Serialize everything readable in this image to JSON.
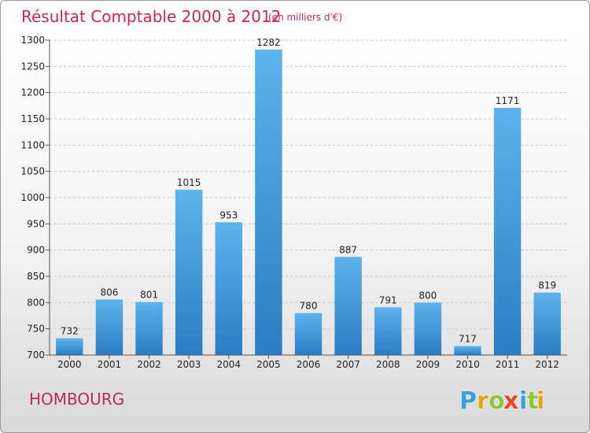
{
  "chart_data": {
    "type": "bar",
    "title": "Résultat Comptable 2000 à 2012",
    "subtitle": "(en milliers d'€)",
    "categories": [
      "2000",
      "2001",
      "2002",
      "2003",
      "2004",
      "2005",
      "2006",
      "2007",
      "2008",
      "2009",
      "2010",
      "2011",
      "2012"
    ],
    "values": [
      732,
      806,
      801,
      1015,
      953,
      1282,
      780,
      887,
      791,
      800,
      717,
      1171,
      819
    ],
    "ylim": [
      700,
      1300
    ],
    "yticks": [
      700,
      750,
      800,
      850,
      900,
      950,
      1000,
      1050,
      1100,
      1150,
      1200,
      1250,
      1300
    ],
    "xlabel": "",
    "ylabel": "",
    "grid": true,
    "bar_color": "#3f9ddf"
  },
  "footer": {
    "commune": "HOMBOURG",
    "logo_letters": [
      "P",
      "r",
      "o",
      "x",
      "i",
      "t",
      "i"
    ],
    "logo_colors": [
      "#3aa0d8",
      "#e8a31c",
      "#8cc63f",
      "#e8442c",
      "#3aa0d8",
      "#8cc63f",
      "#e8a31c"
    ]
  }
}
